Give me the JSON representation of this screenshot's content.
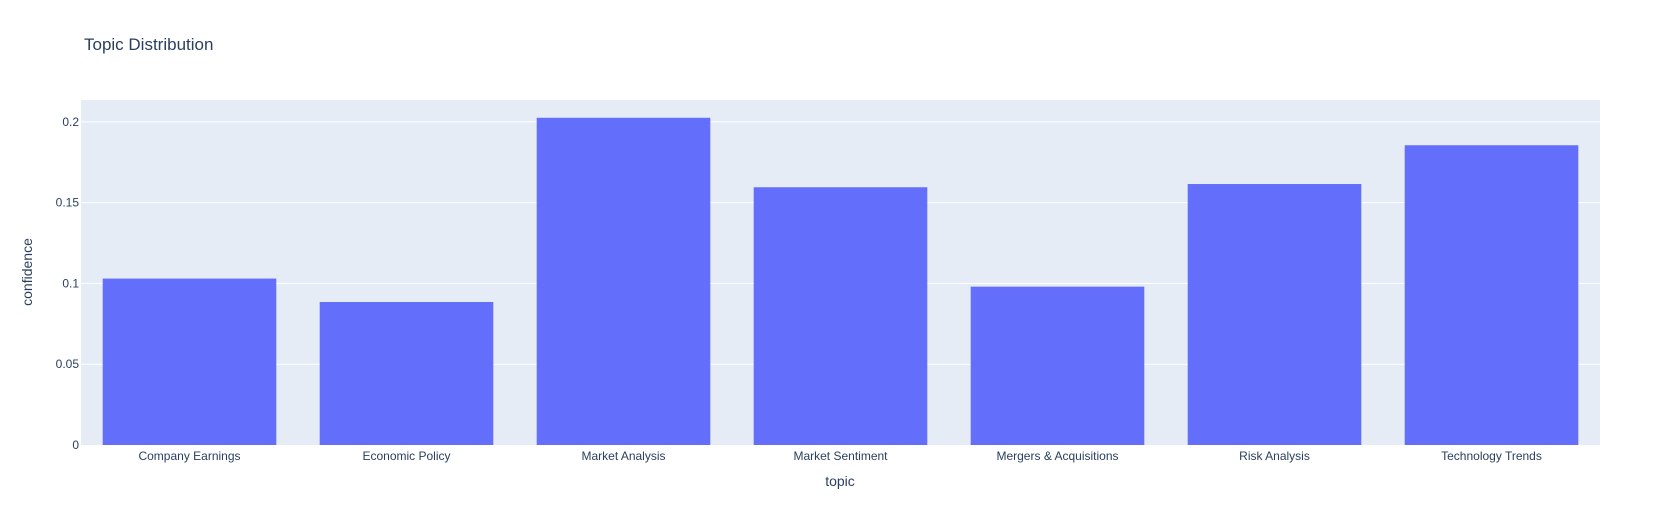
{
  "chart_data": {
    "type": "bar",
    "title": "Topic Distribution",
    "xlabel": "topic",
    "ylabel": "confidence",
    "categories": [
      "Company Earnings",
      "Economic Policy",
      "Market Analysis",
      "Market Sentiment",
      "Mergers & Acquisitions",
      "Risk Analysis",
      "Technology Trends"
    ],
    "values": [
      0.103,
      0.0885,
      0.2025,
      0.1595,
      0.098,
      0.1615,
      0.1855
    ],
    "ylim": [
      0,
      0.2135
    ],
    "yticks": [
      0,
      0.05,
      0.1,
      0.15,
      0.2
    ],
    "ytick_labels": [
      "0",
      "0.05",
      "0.1",
      "0.15",
      "0.2"
    ],
    "grid": true,
    "colors": {
      "bar": "#636efa",
      "plot_bg": "#e5ecf6",
      "grid": "#ffffff",
      "text": "#2a3f5f"
    }
  }
}
